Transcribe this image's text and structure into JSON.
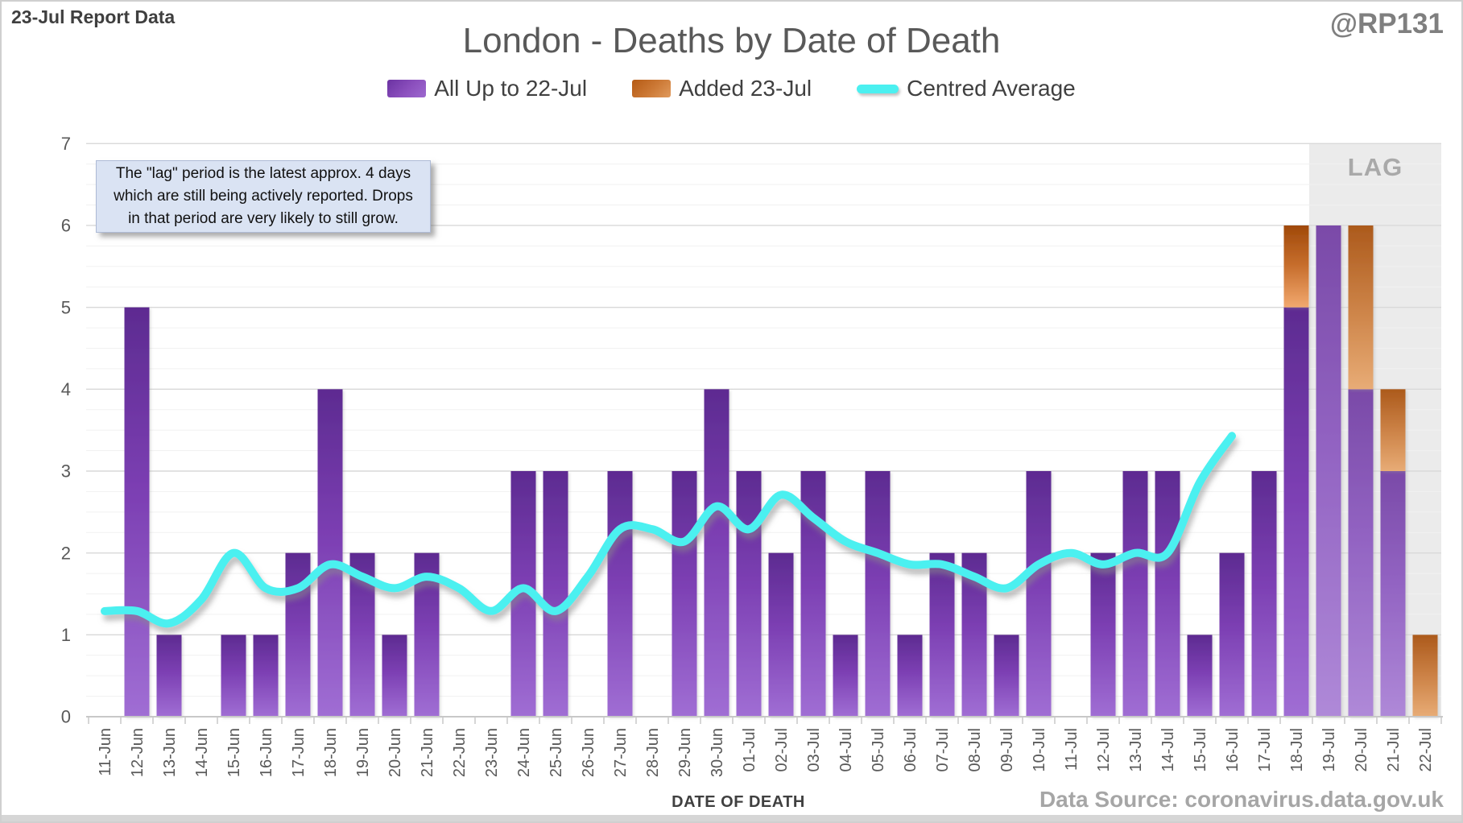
{
  "header": {
    "report_label": "23-Jul Report Data",
    "handle": "@RP131"
  },
  "legend": [
    {
      "label": "All Up to 22-Jul",
      "swatch": "purple-bar",
      "color": "#7030A0"
    },
    {
      "label": "Added 23-Jul",
      "swatch": "orange-bar",
      "color": "#C55A11"
    },
    {
      "label": "Centred Average",
      "swatch": "cyan-line",
      "color": "#4BF0F0"
    }
  ],
  "annotation": {
    "text": "The \"lag\" period is the latest approx. 4 days\nwhich are still being actively reported. Drops\nin that period are very likely to still grow."
  },
  "source": "Data Source: coronavirus.data.gov.uk",
  "chart_data": {
    "type": "bar",
    "title": "London - Deaths by Date of Death",
    "xlabel": "DATE OF DEATH",
    "ylabel": "",
    "ylim": [
      0,
      7
    ],
    "y_major_step": 1,
    "y_minor_step": 0.25,
    "grid": true,
    "legend_position": "top",
    "stacked": true,
    "categories": [
      "11-Jun",
      "12-Jun",
      "13-Jun",
      "14-Jun",
      "15-Jun",
      "16-Jun",
      "17-Jun",
      "18-Jun",
      "19-Jun",
      "20-Jun",
      "21-Jun",
      "22-Jun",
      "23-Jun",
      "24-Jun",
      "25-Jun",
      "26-Jun",
      "27-Jun",
      "28-Jun",
      "29-Jun",
      "30-Jun",
      "01-Jul",
      "02-Jul",
      "03-Jul",
      "04-Jul",
      "05-Jul",
      "06-Jul",
      "07-Jul",
      "08-Jul",
      "09-Jul",
      "10-Jul",
      "11-Jul",
      "12-Jul",
      "13-Jul",
      "14-Jul",
      "15-Jul",
      "16-Jul",
      "17-Jul",
      "18-Jul",
      "19-Jul",
      "20-Jul",
      "21-Jul",
      "22-Jul"
    ],
    "series": [
      {
        "name": "All Up to 22-Jul",
        "type": "bar",
        "values": [
          0,
          5,
          1,
          0,
          1,
          1,
          2,
          4,
          2,
          1,
          2,
          0,
          0,
          3,
          3,
          0,
          3,
          0,
          3,
          4,
          3,
          2,
          3,
          1,
          3,
          1,
          2,
          2,
          1,
          3,
          0,
          2,
          3,
          3,
          1,
          2,
          3,
          5,
          6,
          4,
          3,
          0
        ]
      },
      {
        "name": "Added 23-Jul",
        "type": "bar",
        "values": [
          0,
          0,
          0,
          0,
          0,
          0,
          0,
          0,
          0,
          0,
          0,
          0,
          0,
          0,
          0,
          0,
          0,
          0,
          0,
          0,
          0,
          0,
          0,
          0,
          0,
          0,
          0,
          0,
          0,
          0,
          0,
          0,
          0,
          0,
          0,
          0,
          0,
          1,
          0,
          2,
          1,
          1
        ]
      },
      {
        "name": "Centred Average",
        "type": "line",
        "values": [
          1.29,
          1.29,
          1.14,
          1.43,
          2.0,
          1.57,
          1.57,
          1.86,
          1.71,
          1.57,
          1.71,
          1.57,
          1.29,
          1.57,
          1.29,
          1.71,
          2.29,
          2.29,
          2.14,
          2.57,
          2.29,
          2.71,
          2.43,
          2.14,
          2.0,
          1.86,
          1.86,
          1.71,
          1.57,
          1.86,
          2.0,
          1.86,
          2.0,
          2.0,
          2.86,
          3.43,
          null,
          null,
          null,
          null,
          null,
          null
        ]
      }
    ],
    "lag_region": {
      "label": "LAG",
      "start_category": "19-Jul",
      "end_category": "22-Jul",
      "start_index": 38,
      "note": "grey shaded band covering the last four reporting days"
    },
    "colors": {
      "bar_purple_top": "#5D2B91",
      "bar_purple_bottom": "#A06ED4",
      "bar_purple_lag_top": "#7A4AA8",
      "bar_purple_lag_bottom": "#AF89D8",
      "bar_orange_top": "#A04909",
      "bar_orange_bottom": "#F2A96F",
      "bar_orange_lag_top": "#AC5A1C",
      "bar_orange_lag_bottom": "#E8AC76",
      "line_cyan": "#4BF0F0",
      "lag_band": "#EBEBEB",
      "grid_major": "#D9D9D9",
      "grid_minor": "#F1F1F1",
      "axis": "#C8C8C8",
      "tick_text": "#595959"
    }
  }
}
